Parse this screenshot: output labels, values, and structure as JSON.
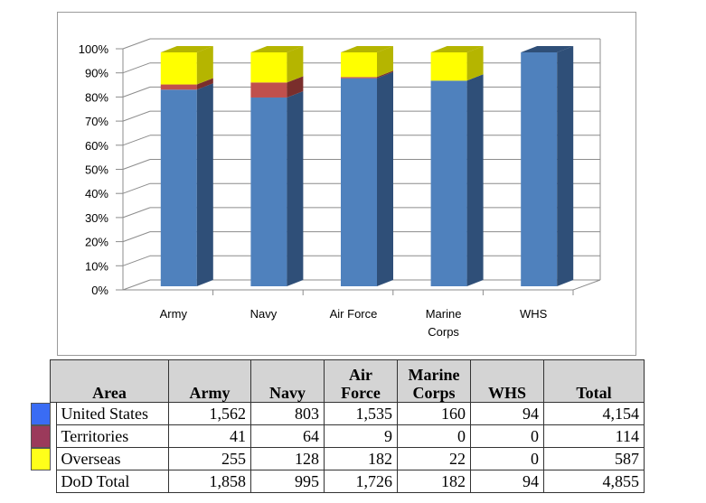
{
  "chart_data": {
    "type": "bar",
    "stacked": true,
    "normalized": true,
    "categories": [
      "Army",
      "Navy",
      "Air Force",
      "Marine Corps",
      "WHS"
    ],
    "category_labels": [
      [
        "Army"
      ],
      [
        "Navy"
      ],
      [
        "Air Force"
      ],
      [
        "Marine",
        "Corps"
      ],
      [
        "WHS"
      ]
    ],
    "series": [
      {
        "name": "United States",
        "values": [
          1562,
          803,
          1535,
          160,
          94
        ],
        "color": "#4f81bd",
        "side_color": "#2f4f78"
      },
      {
        "name": "Territories",
        "values": [
          41,
          64,
          9,
          0,
          0
        ],
        "color": "#c0504d",
        "side_color": "#7a2e2c"
      },
      {
        "name": "Overseas",
        "values": [
          255,
          128,
          182,
          22,
          0
        ],
        "color": "#ffff00",
        "side_color": "#b5b500"
      }
    ],
    "yticks": [
      "0%",
      "10%",
      "20%",
      "30%",
      "40%",
      "50%",
      "60%",
      "70%",
      "80%",
      "90%",
      "100%"
    ],
    "ylim": [
      0,
      100
    ],
    "grid": true
  },
  "table": {
    "headers": [
      [
        "Area"
      ],
      [
        "Army"
      ],
      [
        "Navy"
      ],
      [
        "Air",
        "Force"
      ],
      [
        "Marine",
        "Corps"
      ],
      [
        "WHS"
      ],
      [
        "Total"
      ]
    ],
    "rows": [
      {
        "label": "United States",
        "swatch": "#3a6cf4",
        "values": [
          "1,562",
          "803",
          "1,535",
          "160",
          "94",
          "4,154"
        ]
      },
      {
        "label": "Territories",
        "swatch": "#9b3a5b",
        "values": [
          "41",
          "64",
          "9",
          "0",
          "0",
          "114"
        ]
      },
      {
        "label": "Overseas",
        "swatch": "#ffff1a",
        "values": [
          "255",
          "128",
          "182",
          "22",
          "0",
          "587"
        ]
      },
      {
        "label": "DoD Total",
        "swatch": "",
        "values": [
          "1,858",
          "995",
          "1,726",
          "182",
          "94",
          "4,855"
        ]
      }
    ]
  }
}
